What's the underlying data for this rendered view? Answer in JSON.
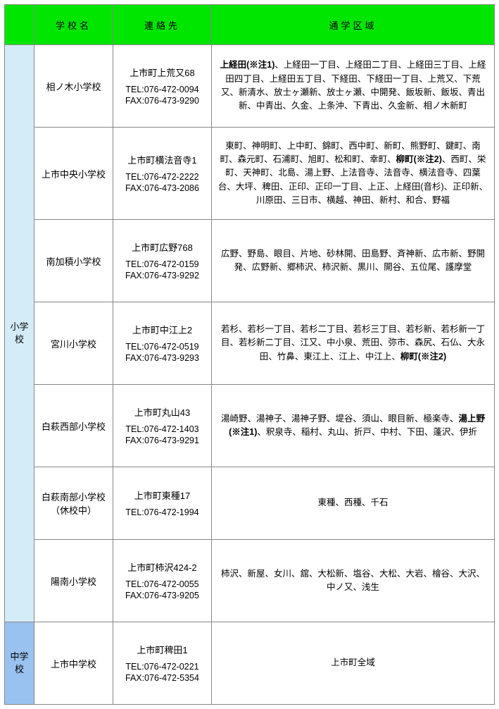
{
  "colors": {
    "header_bg": "#00e600",
    "cat1_bg": "#d4ecf7",
    "cat2_bg": "#99c2f0",
    "border": "#888888"
  },
  "headers": {
    "col1": "",
    "col2": "学校名",
    "col3": "連絡先",
    "col4": "通学区域"
  },
  "cat1": "小学校",
  "cat2": "中学校",
  "rows": [
    {
      "name": "相ノ木小学校",
      "addr": "上市町上荒又68",
      "tel": "TEL:076-472-0094",
      "fax": "FAX:076-473-9290",
      "area_html": "<span class='b'>上経田(※注1)</span>、上経田一丁目、上経田二丁目、上経田三丁目、上経田四丁目、上経田五丁目、下経田、下経田一丁目、上荒又、下荒又、新清水、放士ヶ瀬新、放士ヶ瀬、中開発、飯坂新、飯坂、青出新、中青出、久金、上条沖、下青出、久金新、相ノ木新町"
    },
    {
      "name": "上市中央小学校",
      "addr": "上市町横法音寺1",
      "tel": "TEL:076-472-2222",
      "fax": "FAX:076-473-2086",
      "area_html": "東町、神明町、上中町、錦町、西中町、新町、熊野町、鍵町、南町、森元町、石浦町、旭町、松和町、幸町、<span class='b'>柳町(※注2)</span>、西町、栄町、天神町、北島、湯上野、上法音寺、法音寺、横法音寺、四葉台、大坪、稗田、正印、正印一丁目、上正、上経田(音杉)、正印新、川原田、三日市、横越、神田、新村、和合、野福"
    },
    {
      "name": "南加積小学校",
      "addr": "上市町広野768",
      "tel": "TEL:076-472-0159",
      "fax": "FAX:076-473-9292",
      "area_html": "広野、野島、眼目、片地、砂林開、田島野、斉神新、広市新、野開発、広野新、郷柿沢、柿沢新、黒川、開谷、五位尾、護摩堂"
    },
    {
      "name": "宮川小学校",
      "addr": "上市町中江上2",
      "tel": "TEL:076-472-0519",
      "fax": "FAX:076-473-9293",
      "area_html": "若杉、若杉一丁目、若杉二丁目、若杉三丁目、若杉新、若杉新一丁目、若杉新二丁目、江又、中小泉、荒田、弥市、森尻、石仏、大永田、竹鼻、東江上、江上、中江上、<span class='b'>柳町(※注2)</span>"
    },
    {
      "name": "白萩西部小学校",
      "addr": "上市町丸山43",
      "tel": "TEL:076-472-1403",
      "fax": "FAX:076-473-9291",
      "area_html": "湯崎野、湯神子、湯神子野、堤谷、須山、眼目新、極楽寺、<span class='b'>湯上野(※注1)</span>、釈泉寺、稲村、丸山、折戸、中村、下田、蓬沢、伊折"
    },
    {
      "name_html": "白萩南部小学校<br>（休校中）",
      "addr": "上市町東種17",
      "tel": "TEL:076-472-1994",
      "fax": "",
      "area_html": "東種、西種、千石"
    },
    {
      "name": "陽南小学校",
      "addr": "上市町柿沢424-2",
      "tel": "TEL:076-472-0055",
      "fax": "FAX:076-473-9205",
      "area_html": "柿沢、新屋、女川、舘、大松新、塩谷、大松、大岩、檜谷、大沢、中ノ又、浅生"
    }
  ],
  "row_middle": {
    "name": "上市中学校",
    "addr": "上市町稗田1",
    "tel": "TEL:076-472-0221",
    "fax": "FAX:076-472-5354",
    "area": "上市町全域"
  }
}
